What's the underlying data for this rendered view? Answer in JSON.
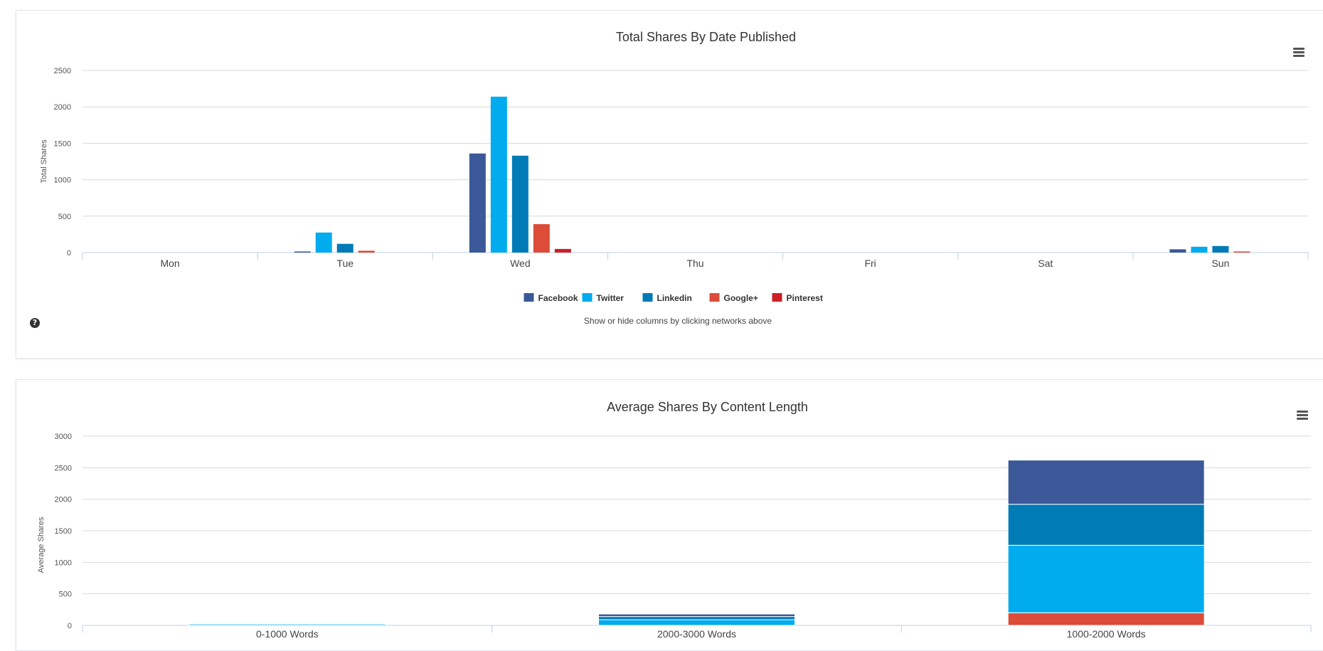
{
  "colors": {
    "facebook": "#3b5998",
    "twitter": "#00aced",
    "linkedin": "#007bb6",
    "googleplus": "#dd4b39",
    "pinterest": "#cb2027",
    "grid": "#d8d8d8",
    "axis": "#c0d0e0"
  },
  "icons": {
    "menu": "hamburger-menu-icon",
    "help": "question-circle-icon"
  },
  "chart1": {
    "help_glyph": "?",
    "footnote": "Show or hide columns by clicking networks above"
  },
  "chart_data": [
    {
      "type": "bar",
      "title": "Total Shares By Date Published",
      "xlabel": "",
      "ylabel": "Total Shares",
      "ylim": [
        0,
        2500
      ],
      "yticks": [
        0,
        500,
        1000,
        1500,
        2000,
        2500
      ],
      "legend": "bottom-center",
      "categories": [
        "Mon",
        "Tue",
        "Wed",
        "Thu",
        "Fri",
        "Sat",
        "Sun"
      ],
      "series": [
        {
          "name": "Facebook",
          "color": "#3b5998",
          "values": [
            0,
            15,
            1360,
            0,
            0,
            0,
            45
          ]
        },
        {
          "name": "Twitter",
          "color": "#00aced",
          "values": [
            0,
            275,
            2140,
            0,
            0,
            0,
            80
          ]
        },
        {
          "name": "Linkedin",
          "color": "#007bb6",
          "values": [
            0,
            120,
            1330,
            0,
            0,
            0,
            90
          ]
        },
        {
          "name": "Google+",
          "color": "#dd4b39",
          "values": [
            0,
            25,
            390,
            0,
            0,
            0,
            15
          ]
        },
        {
          "name": "Pinterest",
          "color": "#cb2027",
          "values": [
            0,
            0,
            50,
            0,
            0,
            0,
            0
          ]
        }
      ]
    },
    {
      "type": "bar",
      "stacked": true,
      "title": "Average Shares By Content Length",
      "xlabel": "",
      "ylabel": "Average Shares",
      "ylim": [
        0,
        3000
      ],
      "yticks": [
        0,
        500,
        1000,
        1500,
        2000,
        2500,
        3000
      ],
      "categories": [
        "0-1000 Words",
        "2000-3000 Words",
        "1000-2000 Words"
      ],
      "series": [
        {
          "name": "Google+",
          "color": "#dd4b39",
          "values": [
            0,
            0,
            200
          ]
        },
        {
          "name": "Twitter",
          "color": "#00aced",
          "values": [
            20,
            90,
            1070
          ]
        },
        {
          "name": "Linkedin",
          "color": "#007bb6",
          "values": [
            0,
            50,
            650
          ]
        },
        {
          "name": "Facebook",
          "color": "#3b5998",
          "values": [
            0,
            40,
            700
          ]
        }
      ]
    }
  ]
}
